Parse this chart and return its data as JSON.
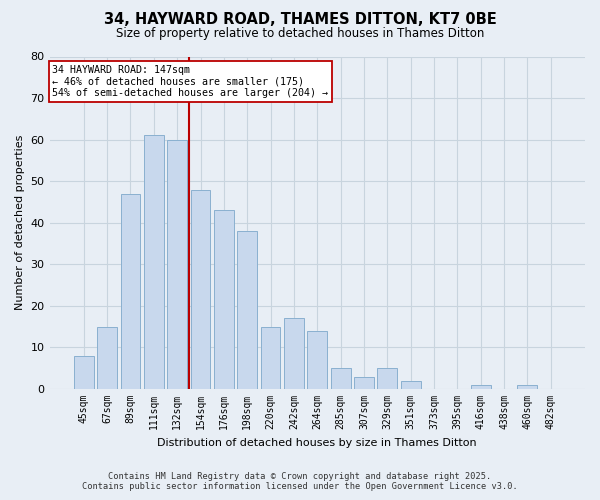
{
  "title": "34, HAYWARD ROAD, THAMES DITTON, KT7 0BE",
  "subtitle": "Size of property relative to detached houses in Thames Ditton",
  "xlabel": "Distribution of detached houses by size in Thames Ditton",
  "ylabel": "Number of detached properties",
  "bar_color": "#c8d8ed",
  "bar_edge_color": "#8ab0d0",
  "categories": [
    "45sqm",
    "67sqm",
    "89sqm",
    "111sqm",
    "132sqm",
    "154sqm",
    "176sqm",
    "198sqm",
    "220sqm",
    "242sqm",
    "264sqm",
    "285sqm",
    "307sqm",
    "329sqm",
    "351sqm",
    "373sqm",
    "395sqm",
    "416sqm",
    "438sqm",
    "460sqm",
    "482sqm"
  ],
  "values": [
    8,
    15,
    47,
    61,
    60,
    48,
    43,
    38,
    15,
    17,
    14,
    5,
    3,
    5,
    2,
    0,
    0,
    1,
    0,
    1,
    0
  ],
  "ylim": [
    0,
    80
  ],
  "yticks": [
    0,
    10,
    20,
    30,
    40,
    50,
    60,
    70,
    80
  ],
  "vline_x_index": 4.5,
  "vline_color": "#bb0000",
  "annotation_line1": "34 HAYWARD ROAD: 147sqm",
  "annotation_line2": "← 46% of detached houses are smaller (175)",
  "annotation_line3": "54% of semi-detached houses are larger (204) →",
  "annotation_box_color": "#ffffff",
  "annotation_box_edge": "#bb0000",
  "footer_line1": "Contains HM Land Registry data © Crown copyright and database right 2025.",
  "footer_line2": "Contains public sector information licensed under the Open Government Licence v3.0.",
  "bg_color": "#e8eef5",
  "plot_bg_color": "#e8eef5",
  "grid_color": "#c8d4de"
}
